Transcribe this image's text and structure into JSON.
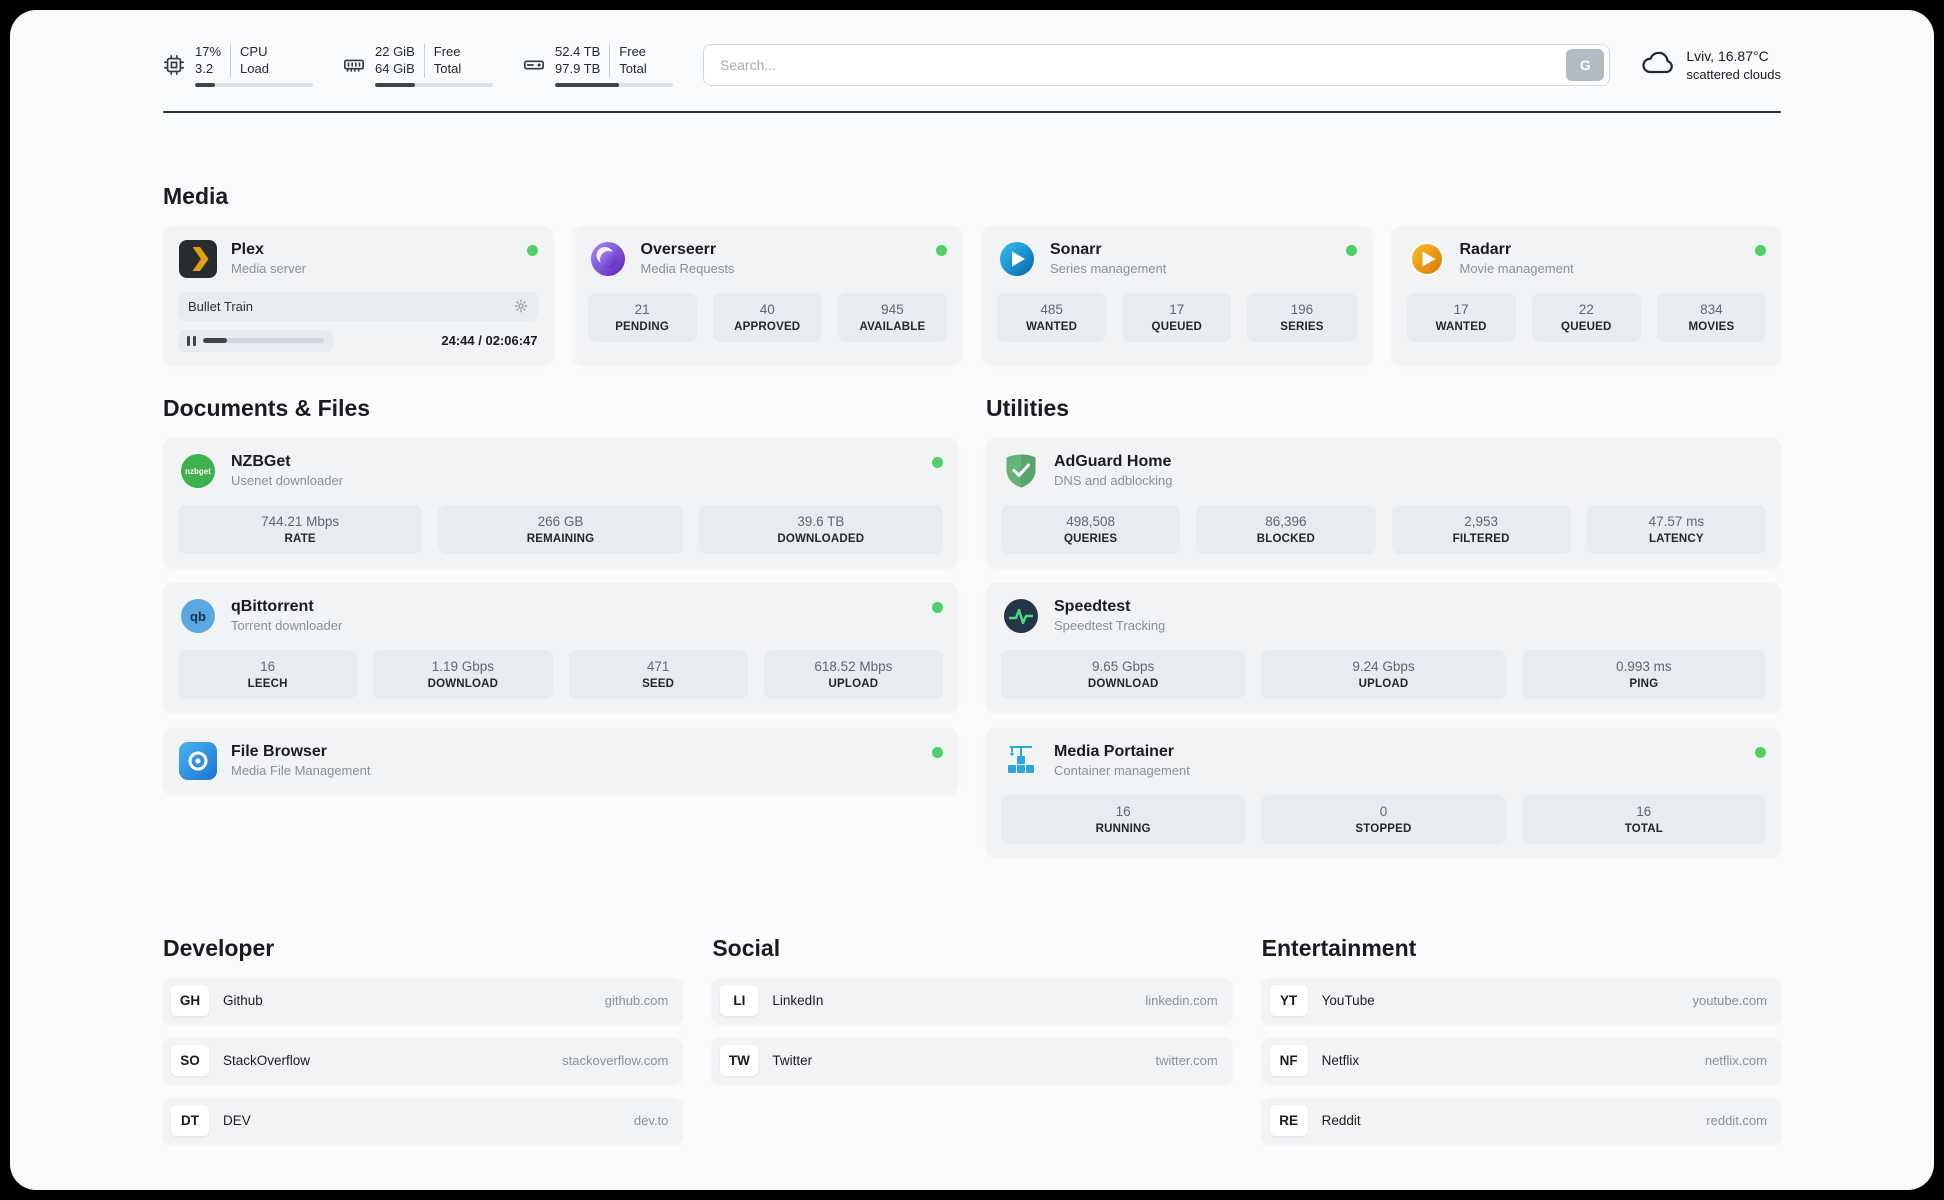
{
  "topbar": {
    "cpu": {
      "value": "17%",
      "sub": "3.2",
      "label1": "CPU",
      "label2": "Load",
      "progress": 17
    },
    "ram": {
      "value": "22 GiB",
      "sub": "64 GiB",
      "label1": "Free",
      "label2": "Total",
      "progress": 34
    },
    "disk": {
      "value": "52.4 TB",
      "sub": "97.9 TB",
      "label1": "Free",
      "label2": "Total",
      "progress": 54
    },
    "search": {
      "placeholder": "Search...",
      "button_label": "G"
    },
    "weather": {
      "location": "Lviv, 16.87°C",
      "condition": "scattered clouds"
    }
  },
  "media": {
    "title": "Media",
    "plex": {
      "name": "Plex",
      "subtitle": "Media server",
      "now_playing": "Bullet Train",
      "time": "24:44 / 02:06:47",
      "progress": 20
    },
    "overseerr": {
      "name": "Overseerr",
      "subtitle": "Media Requests",
      "stats": [
        {
          "value": "21",
          "label": "PENDING"
        },
        {
          "value": "40",
          "label": "APPROVED"
        },
        {
          "value": "945",
          "label": "AVAILABLE"
        }
      ]
    },
    "sonarr": {
      "name": "Sonarr",
      "subtitle": "Series management",
      "stats": [
        {
          "value": "485",
          "label": "WANTED"
        },
        {
          "value": "17",
          "label": "QUEUED"
        },
        {
          "value": "196",
          "label": "SERIES"
        }
      ]
    },
    "radarr": {
      "name": "Radarr",
      "subtitle": "Movie management",
      "stats": [
        {
          "value": "17",
          "label": "WANTED"
        },
        {
          "value": "22",
          "label": "QUEUED"
        },
        {
          "value": "834",
          "label": "MOVIES"
        }
      ]
    }
  },
  "documents": {
    "title": "Documents & Files",
    "nzbget": {
      "name": "NZBGet",
      "subtitle": "Usenet downloader",
      "icon_text": "nzbget",
      "stats": [
        {
          "value": "744.21 Mbps",
          "label": "RATE"
        },
        {
          "value": "266 GB",
          "label": "REMAINING"
        },
        {
          "value": "39.6 TB",
          "label": "DOWNLOADED"
        }
      ]
    },
    "qbittorrent": {
      "name": "qBittorrent",
      "subtitle": "Torrent downloader",
      "icon_text": "qb",
      "stats": [
        {
          "value": "16",
          "label": "LEECH"
        },
        {
          "value": "1.19 Gbps",
          "label": "DOWNLOAD"
        },
        {
          "value": "471",
          "label": "SEED"
        },
        {
          "value": "618.52 Mbps",
          "label": "UPLOAD"
        }
      ]
    },
    "filebrowser": {
      "name": "File Browser",
      "subtitle": "Media File Management"
    }
  },
  "utilities": {
    "title": "Utilities",
    "adguard": {
      "name": "AdGuard Home",
      "subtitle": "DNS and adblocking",
      "stats": [
        {
          "value": "498,508",
          "label": "QUERIES"
        },
        {
          "value": "86,396",
          "label": "BLOCKED"
        },
        {
          "value": "2,953",
          "label": "FILTERED"
        },
        {
          "value": "47.57 ms",
          "label": "LATENCY"
        }
      ]
    },
    "speedtest": {
      "name": "Speedtest",
      "subtitle": "Speedtest Tracking",
      "stats": [
        {
          "value": "9.65 Gbps",
          "label": "DOWNLOAD"
        },
        {
          "value": "9.24 Gbps",
          "label": "UPLOAD"
        },
        {
          "value": "0.993 ms",
          "label": "PING"
        }
      ]
    },
    "portainer": {
      "name": "Media Portainer",
      "subtitle": "Container management",
      "stats": [
        {
          "value": "16",
          "label": "RUNNING"
        },
        {
          "value": "0",
          "label": "STOPPED"
        },
        {
          "value": "16",
          "label": "TOTAL"
        }
      ]
    }
  },
  "bookmarks": {
    "developer": {
      "title": "Developer",
      "items": [
        {
          "abbr": "GH",
          "name": "Github",
          "url": "github.com"
        },
        {
          "abbr": "SO",
          "name": "StackOverflow",
          "url": "stackoverflow.com"
        },
        {
          "abbr": "DT",
          "name": "DEV",
          "url": "dev.to"
        }
      ]
    },
    "social": {
      "title": "Social",
      "items": [
        {
          "abbr": "LI",
          "name": "LinkedIn",
          "url": "linkedin.com"
        },
        {
          "abbr": "TW",
          "name": "Twitter",
          "url": "twitter.com"
        }
      ]
    },
    "entertainment": {
      "title": "Entertainment",
      "items": [
        {
          "abbr": "YT",
          "name": "YouTube",
          "url": "youtube.com"
        },
        {
          "abbr": "NF",
          "name": "Netflix",
          "url": "netflix.com"
        },
        {
          "abbr": "RE",
          "name": "Reddit",
          "url": "reddit.com"
        }
      ]
    }
  },
  "colors": {
    "status_online": "#51cf66",
    "accent_dark": "#343a40"
  }
}
